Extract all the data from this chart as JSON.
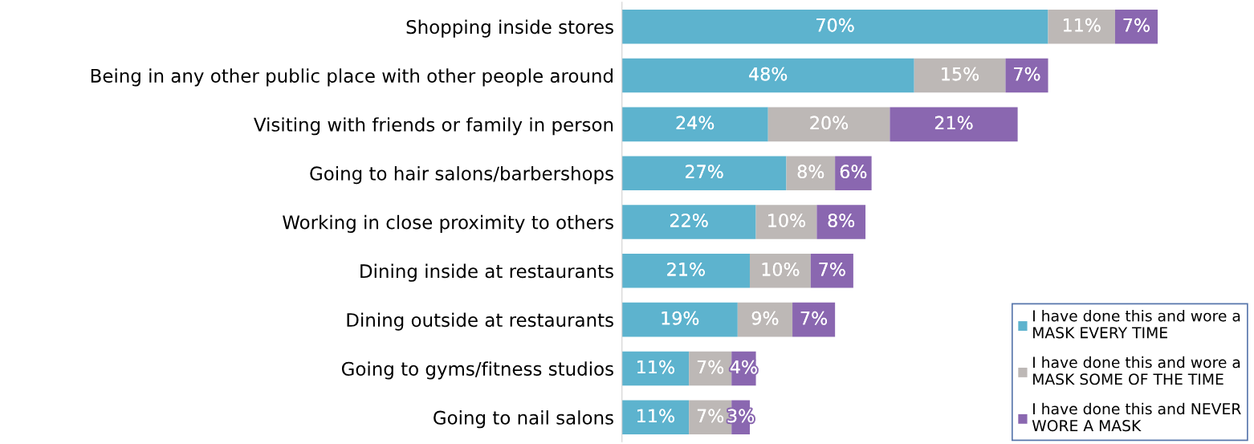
{
  "chart_data": {
    "type": "bar",
    "orientation": "horizontal",
    "stacked": true,
    "categories": [
      "Shopping inside stores",
      "Being in any other public place with other people around",
      "Visiting with friends or family in person",
      "Going to hair salons/barbershops",
      "Working in close proximity to others",
      "Dining inside at restaurants",
      "Dining outside at restaurants",
      "Going to gyms/fitness studios",
      "Going to nail salons"
    ],
    "series": [
      {
        "name": "I have done this and wore a MASK EVERY TIME",
        "color": "#5db3ce",
        "values": [
          70,
          48,
          24,
          27,
          22,
          21,
          19,
          11,
          11
        ],
        "value_labels": [
          "70%",
          "48%",
          "24%",
          "27%",
          "22%",
          "21%",
          "19%",
          "11%",
          "11%"
        ]
      },
      {
        "name": "I have done this and wore a MASK SOME OF THE TIME",
        "color": "#bdb8b6",
        "values": [
          11,
          15,
          20,
          8,
          10,
          10,
          9,
          7,
          7
        ],
        "value_labels": [
          "11%",
          "15%",
          "20%",
          "8%",
          "10%",
          "10%",
          "9%",
          "7%",
          "7%"
        ]
      },
      {
        "name": "I have done this and NEVER WORE A MASK",
        "color": "#8a67b0",
        "values": [
          7,
          7,
          21,
          6,
          8,
          7,
          7,
          4,
          3
        ],
        "value_labels": [
          "7%",
          "7%",
          "21%",
          "6%",
          "8%",
          "7%",
          "7%",
          "4%",
          "3%"
        ]
      }
    ],
    "xlim": [
      0,
      103
    ],
    "tick_labels": "y",
    "grid": false,
    "legend": "bottom right"
  }
}
